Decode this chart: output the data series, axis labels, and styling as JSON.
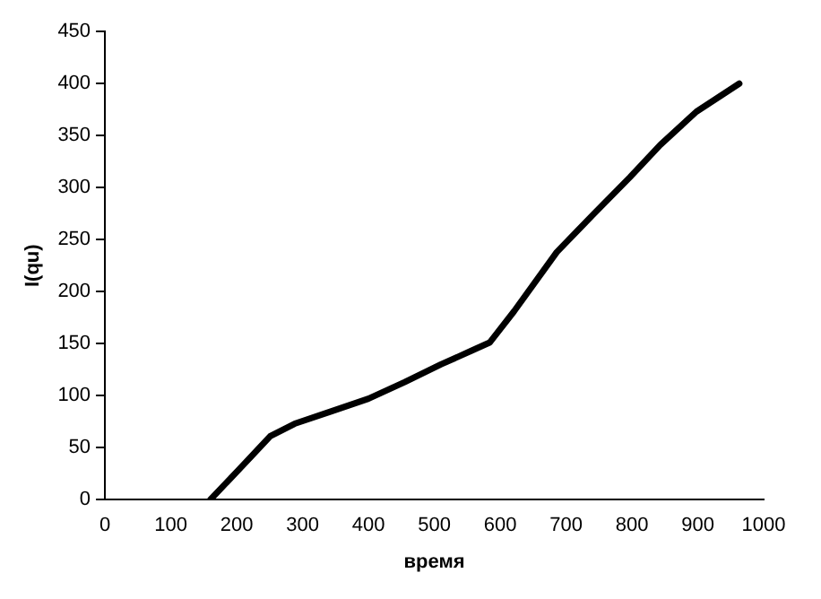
{
  "chart_data": {
    "type": "line",
    "xlabel": "время",
    "ylabel": "I(qu)",
    "series": [
      {
        "color": "#000000",
        "x": [
          160,
          205,
          251,
          288,
          344,
          400,
          455,
          510,
          556,
          584,
          621,
          686,
          741,
          797,
          843,
          898,
          963
        ],
        "values": [
          0,
          30,
          61,
          73,
          85,
          97,
          113,
          130,
          143,
          151,
          181,
          238,
          274,
          310,
          341,
          373,
          400
        ]
      }
    ],
    "xlim": [
      0,
      1000
    ],
    "xticks": [
      0,
      100,
      200,
      300,
      400,
      500,
      600,
      700,
      800,
      900,
      1000
    ],
    "ylim": [
      0,
      450
    ],
    "yticks": [
      0,
      50,
      100,
      150,
      200,
      250,
      300,
      350,
      400,
      450
    ],
    "grid": false,
    "legend": false,
    "marker": "none",
    "line_style": "solid"
  }
}
